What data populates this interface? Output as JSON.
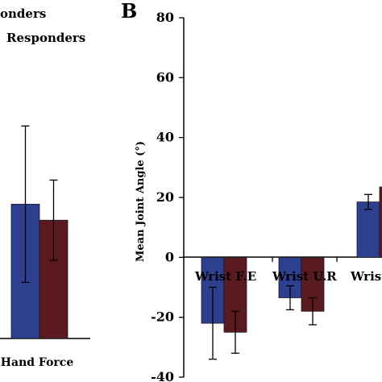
{
  "legend": {
    "items": [
      "onders",
      "Responders"
    ],
    "colors": [
      "#2e3f8f",
      "#5b1a1f"
    ]
  },
  "chart_data": [
    {
      "panel": "",
      "type": "bar",
      "categories": [
        "Hand Force"
      ],
      "series": [
        {
          "values": [
            33.5
          ],
          "errors": [
            19.5
          ],
          "color": "#2e3f8f"
        },
        {
          "values": [
            29.5
          ],
          "errors": [
            10.0
          ],
          "color": "#5b1a1f"
        }
      ],
      "ylim": [
        0,
        80
      ],
      "xlabel": "",
      "ylabel": ""
    },
    {
      "panel": "B",
      "type": "bar",
      "categories": [
        "Wrist F.E",
        "Wrist U.R",
        "Wrist"
      ],
      "series": [
        {
          "values": [
            -22,
            -13.5,
            18.5
          ],
          "errors": [
            12,
            4,
            2.5
          ],
          "color": "#2e3f8f"
        },
        {
          "values": [
            -25,
            -18,
            23.5
          ],
          "errors": [
            7,
            4.5,
            0
          ],
          "color": "#5b1a1f"
        }
      ],
      "ylabel": "Mean Joint Angle (°)",
      "ylim": [
        -40,
        80
      ],
      "yticks": [
        -40,
        -20,
        0,
        20,
        40,
        60,
        80
      ],
      "grid": false
    }
  ]
}
